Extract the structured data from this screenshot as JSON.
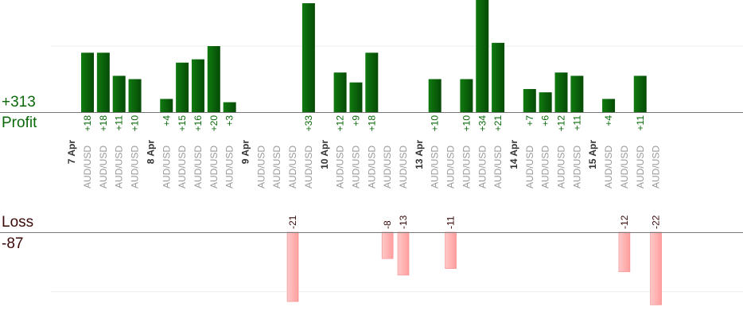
{
  "summary": {
    "profit_value": "+313",
    "profit_label": "Profit",
    "loss_label": "Loss",
    "loss_value": "-87"
  },
  "colors": {
    "profit_bar": "#0b6b0b",
    "profit_text": "#0a6a0a",
    "loss_bar": "#ffb8b8",
    "loss_text": "#3a0a0a",
    "date_text": "#333333",
    "pair_text": "#999999",
    "baseline": "#777777",
    "grid": "#eeeeee"
  },
  "chart_data": {
    "type": "bar",
    "pair": "AUD/USD",
    "days": [
      {
        "date": "7 Apr",
        "trades": [
          18,
          18,
          11,
          10
        ]
      },
      {
        "date": "8 Apr",
        "trades": [
          4,
          15,
          16,
          20,
          3
        ]
      },
      {
        "date": "9 Apr",
        "trades": [
          null,
          null,
          -21,
          33
        ]
      },
      {
        "date": "10 Apr",
        "trades": [
          12,
          9,
          18,
          -8,
          -13
        ]
      },
      {
        "date": "13 Apr",
        "trades": [
          10,
          -11,
          10,
          34,
          21
        ]
      },
      {
        "date": "14 Apr",
        "trades": [
          7,
          6,
          12,
          11
        ]
      },
      {
        "date": "15 Apr",
        "trades": [
          4,
          -12,
          11,
          -22
        ]
      }
    ]
  }
}
